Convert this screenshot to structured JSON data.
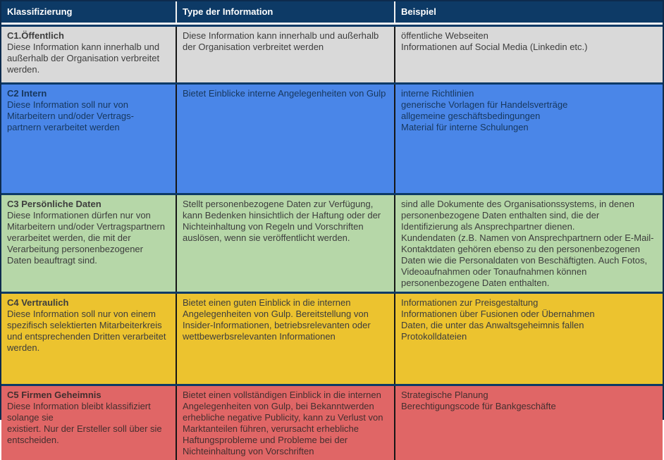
{
  "header": {
    "columns": [
      "Klassifizierung",
      "Type der Information",
      "Beispiel"
    ]
  },
  "rows": [
    {
      "title": "C1.Öffentlich",
      "description": "Diese Information kann innerhalb und außerhalb der Organisation verbreitet werden.",
      "type_info": "Diese Information kann innerhalb und außerhalb der Organisation verbreitet werden",
      "examples": "öffentliche Webseiten\nInformationen auf Social Media (Linkedin etc.)",
      "bg_color": "#d9d9d9",
      "text_color": "#3d3d3d"
    },
    {
      "title": "C2 Intern",
      "description": "Diese Information soll nur von Mitarbeitern und/oder Vertrags-\npartnern verarbeitet werden",
      "type_info": "Bietet Einblicke interne Angelegenheiten von Gulp",
      "examples": "interne Richtlinien\ngenerische Vorlagen für Handelsverträge\nallgemeine geschäftsbedingungen\nMaterial für interne Schulungen",
      "bg_color": "#4a86e8",
      "text_color": "#17375d"
    },
    {
      "title": "C3 Persönliche Daten",
      "description": "Diese Informationen dürfen nur von Mitarbeitern und/oder Vertragspartnern verarbeitet werden, die mit der Verarbeitung personenbezogener Daten beauftragt sind.",
      "type_info": "Stellt personenbezogene Daten zur Verfügung, kann Bedenken hinsichtlich der Haftung oder der Nichteinhaltung von Regeln und Vorschriften auslösen, wenn sie veröffentlicht werden.",
      "examples": "sind alle Dokumente des Organisationssystems, in denen personenbezogene Daten enthalten sind, die der Identifizierung als Ansprechpartner dienen.\nKundendaten (z.B. Namen von Ansprechpartnern oder E-Mail-Kontaktdaten gehören ebenso zu den personenbezogenen Daten wie die Personaldaten von Beschäftigten. Auch Fotos, Videoaufnahmen oder Tonaufnahmen können personenbezogene Daten enthalten.",
      "bg_color": "#b6d7a8",
      "text_color": "#3d3d3d"
    },
    {
      "title": "C4 Vertraulich",
      "description": "Diese Information soll nur von einem spezifisch selektierten Mitarbeiterkreis und entsprechenden Dritten verarbeitet werden.",
      "type_info": "Bietet einen guten Einblick in die internen Angelegenheiten von Gulp. Bereitstellung von Insider-Informationen, betriebsrelevanten oder wettbewerbsrelevanten Informationen",
      "examples": "Informationen zur Preisgestaltung\nInformationen über Fusionen oder Übernahmen\nDaten, die unter das Anwaltsgeheimnis fallen\nProtokolldateien",
      "bg_color": "#ecc32f",
      "text_color": "#3d3d3d"
    },
    {
      "title": "C5 Firmen Geheimnis",
      "description": "Diese Information bleibt klassifiziert solange sie\nexistiert. Nur der Ersteller soll über sie entscheiden.",
      "type_info": "Bietet einen vollständigen Einblick in die internen Angelegenheiten von Gulp, bei Bekanntwerden erhebliche negative Publicity, kann zu Verlust von Marktanteilen führen, verursacht erhebliche Haftungsprobleme und Probleme bei der Nichteinhaltung von Vorschriften",
      "examples": "Strategische Planung\nBerechtigungscode für Bankgeschäfte",
      "bg_color": "#e06666",
      "text_color": "#432f2f"
    }
  ],
  "colors": {
    "header_bg": "#0d3a66",
    "header_text": "#ffffff",
    "outer_border": "#0d2b4d",
    "row_separator": "#0d3a66",
    "column_divider": "#161616",
    "header_separator": "#f2f2f2"
  }
}
